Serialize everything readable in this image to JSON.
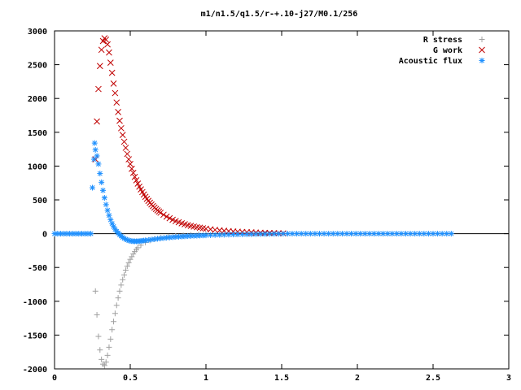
{
  "chart_data": {
    "type": "scatter",
    "title": "m1/n1.5/q1.5/r-+.10-j27/M0.1/256",
    "xlim": [
      0,
      3
    ],
    "ylim": [
      -2000,
      3000
    ],
    "x_ticks": [
      "0",
      "0.5",
      "1",
      "1.5",
      "2",
      "2.5",
      "3"
    ],
    "y_ticks": [
      "3000",
      "2500",
      "2000",
      "1500",
      "1000",
      "500",
      "0",
      "-500",
      "-1000",
      "-1500",
      "-2000"
    ],
    "legend_position": "top-right",
    "series": [
      {
        "name": "R stress",
        "marker": "plus",
        "color": "#a0a0a0",
        "points": [
          [
            0.27,
            -850
          ],
          [
            0.28,
            -1200
          ],
          [
            0.29,
            -1520
          ],
          [
            0.3,
            -1720
          ],
          [
            0.31,
            -1860
          ],
          [
            0.32,
            -1930
          ],
          [
            0.33,
            -1950
          ],
          [
            0.34,
            -1900
          ],
          [
            0.35,
            -1800
          ],
          [
            0.36,
            -1680
          ],
          [
            0.37,
            -1560
          ],
          [
            0.38,
            -1420
          ],
          [
            0.39,
            -1300
          ],
          [
            0.4,
            -1180
          ],
          [
            0.41,
            -1060
          ],
          [
            0.42,
            -950
          ],
          [
            0.43,
            -850
          ],
          [
            0.44,
            -760
          ],
          [
            0.45,
            -680
          ],
          [
            0.46,
            -610
          ],
          [
            0.47,
            -540
          ],
          [
            0.48,
            -480
          ],
          [
            0.49,
            -430
          ],
          [
            0.5,
            -380
          ],
          [
            0.51,
            -340
          ],
          [
            0.52,
            -300
          ],
          [
            0.53,
            -265
          ],
          [
            0.54,
            -235
          ],
          [
            0.55,
            -208
          ],
          [
            0.57,
            -170
          ],
          [
            0.6,
            -130
          ],
          [
            0.63,
            -100
          ],
          [
            0.66,
            -80
          ],
          [
            0.7,
            -60
          ],
          [
            0.75,
            -45
          ],
          [
            0.8,
            -33
          ],
          [
            0.85,
            -25
          ],
          [
            0.9,
            -19
          ],
          [
            0.95,
            -14
          ],
          [
            1.0,
            -10
          ],
          [
            1.1,
            -6
          ],
          [
            1.2,
            -4
          ],
          [
            1.3,
            -2
          ],
          [
            1.4,
            -1
          ]
        ]
      },
      {
        "name": "G work",
        "marker": "cross",
        "color": "#c00000",
        "points": [
          [
            0.27,
            1100
          ],
          [
            0.28,
            1660
          ],
          [
            0.29,
            2140
          ],
          [
            0.3,
            2480
          ],
          [
            0.31,
            2720
          ],
          [
            0.32,
            2850
          ],
          [
            0.33,
            2890
          ],
          [
            0.34,
            2870
          ],
          [
            0.35,
            2800
          ],
          [
            0.36,
            2680
          ],
          [
            0.37,
            2530
          ],
          [
            0.38,
            2380
          ],
          [
            0.39,
            2220
          ],
          [
            0.4,
            2080
          ],
          [
            0.41,
            1940
          ],
          [
            0.42,
            1800
          ],
          [
            0.43,
            1670
          ],
          [
            0.44,
            1560
          ],
          [
            0.45,
            1460
          ],
          [
            0.46,
            1360
          ],
          [
            0.47,
            1270
          ],
          [
            0.48,
            1180
          ],
          [
            0.49,
            1100
          ],
          [
            0.5,
            1030
          ],
          [
            0.51,
            960
          ],
          [
            0.52,
            900
          ],
          [
            0.53,
            840
          ],
          [
            0.54,
            790
          ],
          [
            0.55,
            740
          ],
          [
            0.56,
            695
          ],
          [
            0.57,
            655
          ],
          [
            0.58,
            615
          ],
          [
            0.59,
            580
          ],
          [
            0.6,
            545
          ],
          [
            0.61,
            515
          ],
          [
            0.62,
            485
          ],
          [
            0.63,
            458
          ],
          [
            0.64,
            432
          ],
          [
            0.65,
            408
          ],
          [
            0.66,
            386
          ],
          [
            0.67,
            365
          ],
          [
            0.68,
            345
          ],
          [
            0.69,
            327
          ],
          [
            0.7,
            310
          ],
          [
            0.72,
            280
          ],
          [
            0.74,
            252
          ],
          [
            0.76,
            228
          ],
          [
            0.78,
            206
          ],
          [
            0.8,
            186
          ],
          [
            0.82,
            169
          ],
          [
            0.84,
            153
          ],
          [
            0.86,
            139
          ],
          [
            0.88,
            126
          ],
          [
            0.9,
            115
          ],
          [
            0.92,
            105
          ],
          [
            0.94,
            96
          ],
          [
            0.96,
            88
          ],
          [
            0.98,
            80
          ],
          [
            1.0,
            73
          ],
          [
            1.03,
            64
          ],
          [
            1.06,
            56
          ],
          [
            1.09,
            49
          ],
          [
            1.12,
            43
          ],
          [
            1.15,
            38
          ],
          [
            1.18,
            33
          ],
          [
            1.21,
            29
          ],
          [
            1.24,
            25
          ],
          [
            1.27,
            22
          ],
          [
            1.3,
            19
          ],
          [
            1.33,
            16
          ],
          [
            1.36,
            14
          ],
          [
            1.39,
            12
          ],
          [
            1.42,
            10
          ],
          [
            1.45,
            8
          ],
          [
            1.48,
            6
          ],
          [
            1.51,
            4
          ]
        ]
      },
      {
        "name": "Acoustic flux",
        "marker": "star",
        "color": "#1e90ff",
        "points": [
          [
            0.0,
            0
          ],
          [
            0.02,
            0
          ],
          [
            0.04,
            0
          ],
          [
            0.06,
            0
          ],
          [
            0.08,
            0
          ],
          [
            0.1,
            0
          ],
          [
            0.12,
            0
          ],
          [
            0.14,
            0
          ],
          [
            0.16,
            0
          ],
          [
            0.18,
            0
          ],
          [
            0.2,
            0
          ],
          [
            0.22,
            0
          ],
          [
            0.24,
            0
          ],
          [
            0.25,
            680
          ],
          [
            0.26,
            1100
          ],
          [
            0.265,
            1340
          ],
          [
            0.27,
            1240
          ],
          [
            0.28,
            1150
          ],
          [
            0.29,
            1030
          ],
          [
            0.3,
            890
          ],
          [
            0.31,
            760
          ],
          [
            0.32,
            640
          ],
          [
            0.33,
            530
          ],
          [
            0.34,
            430
          ],
          [
            0.35,
            345
          ],
          [
            0.36,
            270
          ],
          [
            0.37,
            205
          ],
          [
            0.38,
            150
          ],
          [
            0.39,
            105
          ],
          [
            0.4,
            65
          ],
          [
            0.41,
            35
          ],
          [
            0.42,
            10
          ],
          [
            0.43,
            -15
          ],
          [
            0.44,
            -35
          ],
          [
            0.45,
            -55
          ],
          [
            0.46,
            -70
          ],
          [
            0.47,
            -82
          ],
          [
            0.48,
            -92
          ],
          [
            0.49,
            -100
          ],
          [
            0.5,
            -106
          ],
          [
            0.51,
            -110
          ],
          [
            0.52,
            -112
          ],
          [
            0.53,
            -113
          ],
          [
            0.54,
            -113
          ],
          [
            0.55,
            -112
          ],
          [
            0.56,
            -110
          ],
          [
            0.57,
            -108
          ],
          [
            0.58,
            -105
          ],
          [
            0.59,
            -102
          ],
          [
            0.6,
            -99
          ],
          [
            0.62,
            -93
          ],
          [
            0.64,
            -87
          ],
          [
            0.66,
            -81
          ],
          [
            0.68,
            -75
          ],
          [
            0.7,
            -70
          ],
          [
            0.72,
            -65
          ],
          [
            0.74,
            -60
          ],
          [
            0.76,
            -56
          ],
          [
            0.78,
            -52
          ],
          [
            0.8,
            -48
          ],
          [
            0.82,
            -45
          ],
          [
            0.84,
            -42
          ],
          [
            0.86,
            -39
          ],
          [
            0.88,
            -36
          ],
          [
            0.9,
            -34
          ],
          [
            0.92,
            -32
          ],
          [
            0.94,
            -30
          ],
          [
            0.96,
            -28
          ],
          [
            0.98,
            -26
          ],
          [
            1.0,
            -24
          ],
          [
            1.03,
            -22
          ],
          [
            1.06,
            -20
          ],
          [
            1.09,
            -18
          ],
          [
            1.12,
            -16
          ],
          [
            1.15,
            -14
          ],
          [
            1.18,
            -12
          ],
          [
            1.21,
            -11
          ],
          [
            1.24,
            -10
          ],
          [
            1.27,
            -9
          ],
          [
            1.3,
            -8
          ],
          [
            1.33,
            -7
          ],
          [
            1.36,
            -6
          ],
          [
            1.39,
            -5
          ],
          [
            1.42,
            -4
          ],
          [
            1.45,
            -3
          ],
          [
            1.48,
            -2
          ],
          [
            1.51,
            -1
          ],
          [
            1.54,
            0
          ],
          [
            1.57,
            0
          ],
          [
            1.6,
            0
          ],
          [
            1.63,
            0
          ],
          [
            1.66,
            0
          ],
          [
            1.69,
            0
          ],
          [
            1.72,
            0
          ],
          [
            1.75,
            0
          ],
          [
            1.78,
            0
          ],
          [
            1.81,
            0
          ],
          [
            1.84,
            0
          ],
          [
            1.87,
            0
          ],
          [
            1.9,
            0
          ],
          [
            1.93,
            0
          ],
          [
            1.96,
            0
          ],
          [
            1.99,
            0
          ],
          [
            2.02,
            0
          ],
          [
            2.05,
            0
          ],
          [
            2.08,
            0
          ],
          [
            2.11,
            0
          ],
          [
            2.14,
            0
          ],
          [
            2.17,
            0
          ],
          [
            2.2,
            0
          ],
          [
            2.23,
            0
          ],
          [
            2.26,
            0
          ],
          [
            2.29,
            0
          ],
          [
            2.32,
            0
          ],
          [
            2.35,
            0
          ],
          [
            2.38,
            0
          ],
          [
            2.41,
            0
          ],
          [
            2.44,
            0
          ],
          [
            2.47,
            0
          ],
          [
            2.5,
            0
          ],
          [
            2.53,
            0
          ],
          [
            2.56,
            0
          ],
          [
            2.59,
            0
          ],
          [
            2.62,
            0
          ]
        ]
      }
    ]
  }
}
